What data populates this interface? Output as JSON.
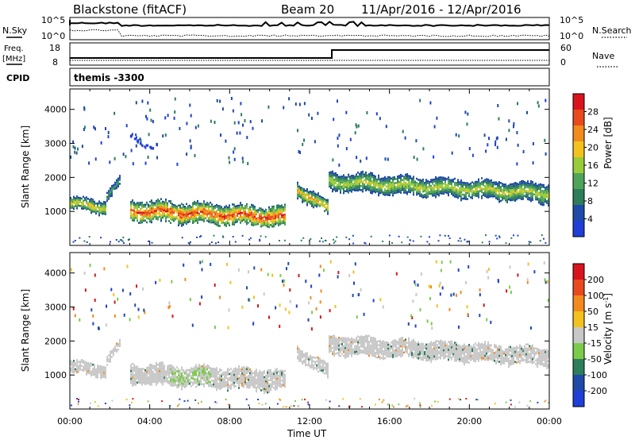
{
  "header": {
    "station": "Blackstone (fitACF)",
    "beam": "Beam 20",
    "date_range": "11/Apr/2016 - 12/Apr/2016"
  },
  "panels": {
    "sky": {
      "left_label": "N.Sky",
      "right_label": "N.Search",
      "left_ticks": [
        "10^5",
        "10^0"
      ],
      "right_ticks": [
        "10^5",
        "10^0"
      ]
    },
    "freq": {
      "left_label_1": "Freq.",
      "left_label_2": "[MHz]",
      "right_label": "Nave",
      "left_ticks": [
        "18",
        "8"
      ],
      "right_ticks": [
        "60",
        "0"
      ]
    },
    "cpid": {
      "label": "CPID",
      "value": "themis -3300"
    }
  },
  "colors": {
    "power": [
      "#1f3fd6",
      "#1f4aa8",
      "#2e7d5b",
      "#4fa35a",
      "#9acb3a",
      "#f2c21e",
      "#f28a1e",
      "#e84a1e",
      "#d9141c"
    ],
    "velocity": [
      "#1f3fd6",
      "#1f4aa8",
      "#2e7d5b",
      "#7ccb4a",
      "#c8c8c8",
      "#f2c21e",
      "#f28a1e",
      "#e84a1e",
      "#d9141c"
    ]
  },
  "chart_data": [
    {
      "type": "heatmap",
      "name": "Power",
      "ylabel": "Slant Range [km]",
      "yticks": [
        "4000",
        "3000",
        "2000",
        "1000"
      ],
      "ylim": [
        0,
        4600
      ],
      "xlim": [
        0,
        24
      ],
      "colorbar": {
        "label": "Power [dB]",
        "ticks": [
          "28",
          "24",
          "20",
          "16",
          "12",
          "8",
          "4"
        ],
        "range": [
          0,
          32
        ]
      },
      "bands": [
        {
          "x": [
            0.0,
            1.8
          ],
          "r_center": [
            1250,
            1150
          ],
          "thickness": 350,
          "peak_db": 20
        },
        {
          "x": [
            1.8,
            2.5
          ],
          "r_center": [
            1450,
            1900
          ],
          "thickness": 250,
          "peak_db": 12
        },
        {
          "x": [
            3.0,
            10.8
          ],
          "r_center": [
            1050,
            850
          ],
          "thickness": 550,
          "peak_db": 28
        },
        {
          "x": [
            11.3,
            12.9
          ],
          "r_center": [
            1700,
            1100
          ],
          "thickness": 400,
          "peak_db": 22
        },
        {
          "x": [
            12.9,
            24.0
          ],
          "r_center": [
            1900,
            1550
          ],
          "thickness": 500,
          "peak_db": 18
        }
      ]
    },
    {
      "type": "heatmap",
      "name": "Velocity",
      "ylabel": "Slant Range [km]",
      "yticks": [
        "4000",
        "3000",
        "2000",
        "1000"
      ],
      "ylim": [
        0,
        4600
      ],
      "xlim": [
        0,
        24
      ],
      "xlabel": "Time UT",
      "xticks": [
        "00:00",
        "04:00",
        "08:00",
        "12:00",
        "16:00",
        "20:00",
        "00:00"
      ],
      "colorbar": {
        "label": "Velocity [m s^-1]",
        "ticks": [
          "200",
          "100",
          "50",
          "15",
          "-15",
          "-50",
          "-100",
          "-200"
        ],
        "range": [
          -250,
          250
        ]
      },
      "dominant_velocity": "ground scatter (-15 to 15)"
    }
  ]
}
